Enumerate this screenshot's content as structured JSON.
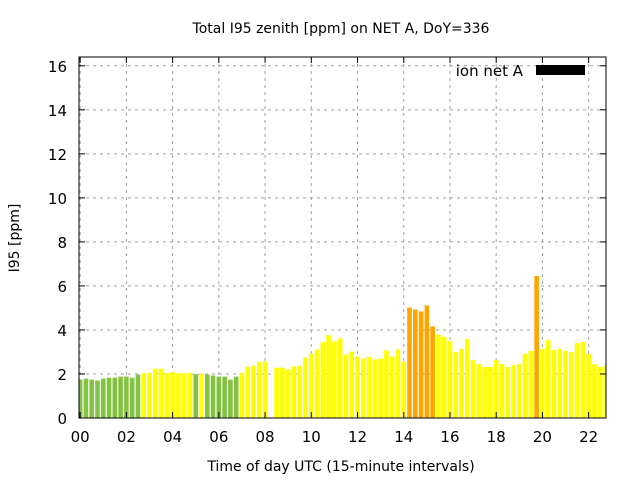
{
  "chart_data": {
    "type": "bar",
    "title": "Total I95 zenith [ppm] on NET A, DoY=336",
    "xlabel": "Time of day UTC (15-minute intervals)",
    "ylabel": "I95 [ppm]",
    "xlim": [
      -0.05,
      22.75
    ],
    "ylim": [
      0,
      16.4
    ],
    "grid": true,
    "x_ticks": [
      0,
      2,
      4,
      6,
      8,
      10,
      12,
      14,
      16,
      18,
      20,
      22
    ],
    "x_tick_labels": [
      "00",
      "02",
      "04",
      "06",
      "08",
      "10",
      "12",
      "14",
      "16",
      "18",
      "20",
      "22"
    ],
    "y_ticks": [
      0,
      2,
      4,
      6,
      8,
      10,
      12,
      14,
      16
    ],
    "y_tick_labels": [
      "0",
      "2",
      "4",
      "6",
      "8",
      "10",
      "12",
      "14",
      "16"
    ],
    "x_step_hours": 0.25,
    "legend": {
      "label": "ion net A",
      "color": "#000000",
      "placement": "top-right"
    },
    "color_thresholds": [
      {
        "below": 2,
        "color": "#84c341"
      },
      {
        "below": 4,
        "color": "#ffff00"
      },
      {
        "below": 999,
        "color": "#ffa500"
      }
    ],
    "values": [
      1.74,
      1.79,
      1.74,
      1.7,
      1.79,
      1.83,
      1.83,
      1.88,
      1.88,
      1.83,
      1.97,
      2.03,
      2.05,
      2.24,
      2.24,
      2.05,
      2.08,
      2.03,
      2.03,
      2.05,
      1.99,
      2.01,
      1.97,
      1.93,
      1.88,
      1.88,
      1.74,
      1.88,
      2.05,
      2.33,
      2.38,
      2.56,
      2.56,
      null,
      2.29,
      2.29,
      2.2,
      2.34,
      2.38,
      2.75,
      2.93,
      3.11,
      3.44,
      3.76,
      3.48,
      3.62,
      2.89,
      3.02,
      2.79,
      2.7,
      2.79,
      2.66,
      2.7,
      3.07,
      2.79,
      3.11,
      2.56,
      5.02,
      4.93,
      4.84,
      5.11,
      4.16,
      3.79,
      3.68,
      3.5,
      3.0,
      3.14,
      3.59,
      2.64,
      2.45,
      2.32,
      2.32,
      2.64,
      2.45,
      2.32,
      2.41,
      2.45,
      2.91,
      3.05,
      6.45,
      3.14,
      3.55,
      3.09,
      3.14,
      3.05,
      3.0,
      3.41,
      3.45,
      2.91,
      2.45,
      2.32,
      2.36
    ]
  }
}
